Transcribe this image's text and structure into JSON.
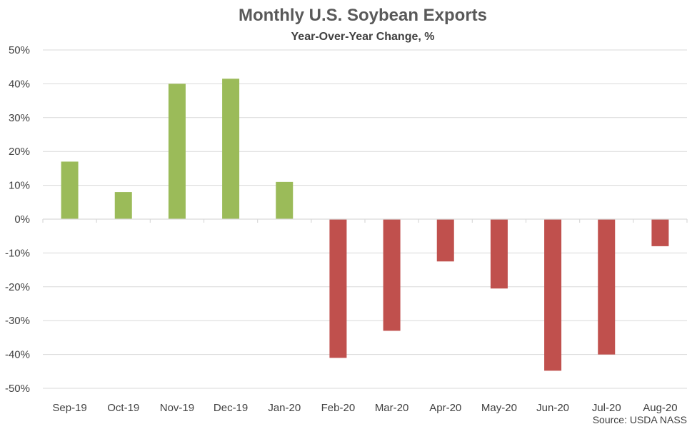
{
  "chart_data": {
    "type": "bar",
    "title": "Monthly U.S. Soybean Exports",
    "subtitle": "Year-Over-Year Change, %",
    "categories": [
      "Sep-19",
      "Oct-19",
      "Nov-19",
      "Dec-19",
      "Jan-20",
      "Feb-20",
      "Mar-20",
      "Apr-20",
      "May-20",
      "Jun-20",
      "Jul-20",
      "Aug-20"
    ],
    "values": [
      17,
      8,
      40,
      41.5,
      11,
      -41,
      -33,
      -12.5,
      -20.5,
      -44.8,
      -40,
      -8
    ],
    "ylim": [
      -50,
      50
    ],
    "yticks": [
      50,
      40,
      30,
      20,
      10,
      0,
      -10,
      -20,
      -30,
      -40,
      -50
    ],
    "ytick_labels": [
      "50%",
      "40%",
      "30%",
      "20%",
      "10%",
      "0%",
      "-10%",
      "-20%",
      "-30%",
      "-40%",
      "-50%"
    ],
    "grid": true,
    "xlabel": "",
    "ylabel": "",
    "colors": {
      "positive": "#9BBB59",
      "negative": "#C0504D",
      "grid": "#D9D9D9",
      "axis_text": "#404040"
    }
  },
  "source": "Source: USDA NASS"
}
